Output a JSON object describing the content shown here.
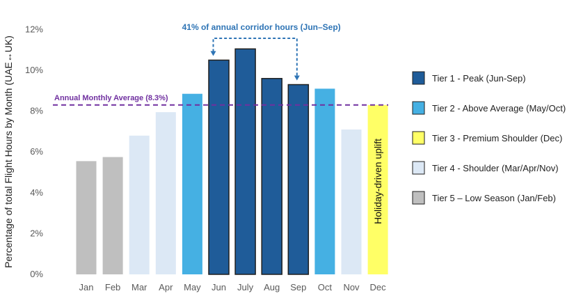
{
  "chart_data": {
    "type": "bar",
    "title": "",
    "xlabel": "",
    "ylabel": "Percentage of total Flight Hours by Month (UAE↔UK)",
    "ylim": [
      0,
      12
    ],
    "yticks": [
      "0%",
      "2%",
      "4%",
      "6%",
      "8%",
      "10%",
      "12%"
    ],
    "categories": [
      "Jan",
      "Feb",
      "Mar",
      "Apr",
      "May",
      "Jun",
      "July",
      "Aug",
      "Sep",
      "Oct",
      "Nov",
      "Dec"
    ],
    "values": [
      5.55,
      5.75,
      6.8,
      7.95,
      8.85,
      10.5,
      11.05,
      9.6,
      9.3,
      9.1,
      7.1,
      8.3
    ],
    "tiers": [
      5,
      5,
      4,
      4,
      2,
      1,
      1,
      1,
      1,
      2,
      4,
      3
    ],
    "average": {
      "value": 8.3,
      "label": "Annual Monthly Average (8.3%)"
    },
    "corridor_annotation": {
      "label": "41% of annual corridor hours (Jun–Sep)",
      "from": "Jun",
      "to": "Sep"
    },
    "bar_note": {
      "category": "Dec",
      "label": "Holiday-driven uplift"
    },
    "legend": [
      {
        "tier": 1,
        "label": "Tier 1 - Peak (Jun-Sep)",
        "color": "#1F5C99"
      },
      {
        "tier": 2,
        "label": "Tier 2 - Above Average (May/Oct)",
        "color": "#45B0E3"
      },
      {
        "tier": 3,
        "label": "Tier 3 - Premium Shoulder (Dec)",
        "color": "#FFFF66"
      },
      {
        "tier": 4,
        "label": " Tier 4 - Shoulder (Mar/Apr/Nov)",
        "color": "#DCE8F5"
      },
      {
        "tier": 5,
        "label": "Tier 5 – Low Season (Jan/Feb)",
        "color": "#BFBFBF"
      }
    ],
    "colors": {
      "average_line": "#7030A0",
      "corridor": "#2E74B5",
      "outline": "#1F1F1F"
    },
    "legend_position": "right"
  }
}
